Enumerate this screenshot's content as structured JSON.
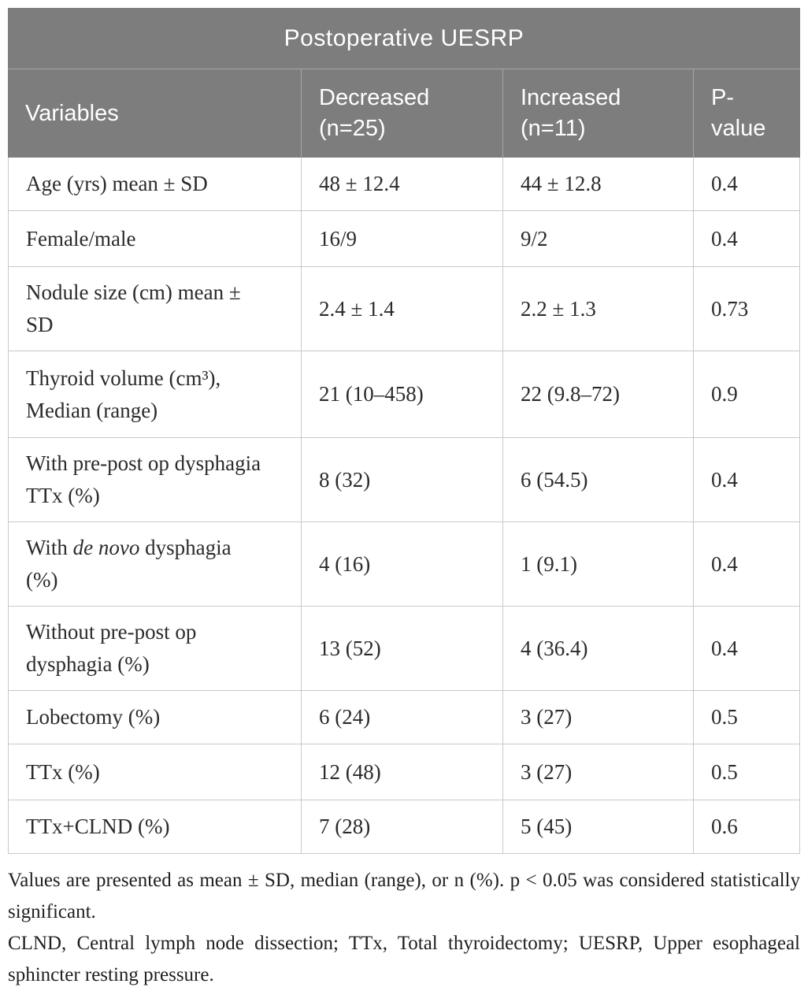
{
  "table": {
    "title": "Postoperative UESRP",
    "columns": {
      "variables": "Variables",
      "decreased": "Decreased (n=25)",
      "increased": "Increased (n=11)",
      "p_value": "P-value"
    },
    "rows": [
      {
        "label": "Age (yrs) mean ± SD",
        "decreased": "48 ± 12.4",
        "increased": "44 ± 12.8",
        "p": "0.4"
      },
      {
        "label": "Female/male",
        "decreased": "16/9",
        "increased": "9/2",
        "p": "0.4"
      },
      {
        "label": "Nodule size (cm) mean ± SD",
        "decreased": "2.4 ± 1.4",
        "increased": "2.2 ± 1.3",
        "p": "0.73"
      },
      {
        "label": "Thyroid volume (cm³), Median (range)",
        "decreased": "21 (10–458)",
        "increased": "22 (9.8–72)",
        "p": "0.9"
      },
      {
        "label": "With pre-post op dysphagia TTx (%)",
        "decreased": "8 (32)",
        "increased": "6 (54.5)",
        "p": "0.4"
      },
      {
        "label_prefix": "With ",
        "label_italic": "de novo",
        "label_suffix": " dysphagia (%)",
        "decreased": "4 (16)",
        "increased": "1 (9.1)",
        "p": "0.4"
      },
      {
        "label": "Without pre-post op dysphagia (%)",
        "decreased": "13 (52)",
        "increased": "4 (36.4)",
        "p": "0.4"
      },
      {
        "label": "Lobectomy (%)",
        "decreased": "6 (24)",
        "increased": "3 (27)",
        "p": "0.5"
      },
      {
        "label": "TTx (%)",
        "decreased": "12 (48)",
        "increased": "3 (27)",
        "p": "0.5"
      },
      {
        "label": "TTx+CLND (%)",
        "decreased": "7 (28)",
        "increased": "5 (45)",
        "p": "0.6"
      }
    ]
  },
  "footnotes": {
    "note1": "Values are presented as mean ± SD, median (range), or n (%). p < 0.05 was considered statistically significant.",
    "note2": "CLND, Central lymph node dissection; TTx, Total thyroidectomy; UESRP, Upper esophageal sphincter resting pressure."
  },
  "colors": {
    "header_bg": "#7d7d7d",
    "header_text": "#ffffff",
    "body_text": "#2b2b2b",
    "border": "#c9c9c9"
  }
}
